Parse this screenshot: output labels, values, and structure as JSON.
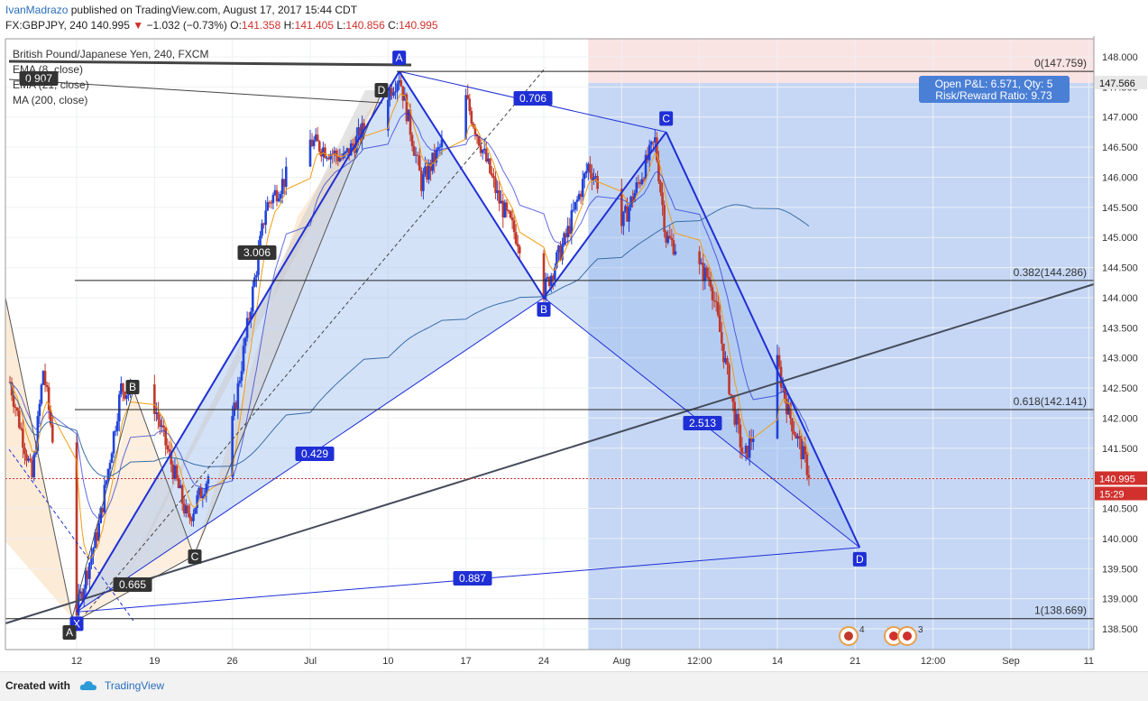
{
  "header": {
    "author": "IvanMadrazo",
    "published": "published on TradingView.com, August 17, 2017 15:44 CDT",
    "symbol": "FX:GBPJPY, 240",
    "last": "140.995",
    "change": "−1.032 (−0.73%)",
    "open_label": "O:",
    "open": "141.358",
    "high_label": "H:",
    "high": "141.405",
    "low_label": "L:",
    "low": "140.856",
    "close_label": "C:",
    "close": "140.995"
  },
  "legend": {
    "title": "British Pound/Japanese Yen, 240, FXCM",
    "ema8": "EMA (8, close)",
    "ema21": "EMA (21, close)",
    "ma200": "MA (200, close)"
  },
  "chart_data": {
    "type": "line",
    "title": "British Pound/Japanese Yen, 240, FXCM",
    "y_axis": {
      "ticks": [
        "148.000",
        "147.500",
        "147.000",
        "146.500",
        "146.000",
        "145.500",
        "145.000",
        "144.500",
        "144.000",
        "143.500",
        "143.000",
        "142.500",
        "142.000",
        "141.500",
        "141.000",
        "140.500",
        "140.000",
        "139.500",
        "139.000",
        "138.500"
      ],
      "range": [
        138.2,
        148.3
      ]
    },
    "x_axis": {
      "ticks": [
        "12",
        "19",
        "26",
        "Jul",
        "10",
        "17",
        "24",
        "Aug",
        "12:00",
        "14",
        "21",
        "12:00",
        "Sep",
        "11"
      ]
    },
    "price_path": [
      {
        "date": "2017-06-06",
        "close": 142.6
      },
      {
        "date": "2017-06-08",
        "close": 141.0
      },
      {
        "date": "2017-06-09",
        "close": 142.8
      },
      {
        "date": "2017-06-12",
        "close": 138.8
      },
      {
        "date": "2017-06-14",
        "close": 140.2
      },
      {
        "date": "2017-06-16",
        "close": 142.5
      },
      {
        "date": "2017-06-19",
        "close": 142.2
      },
      {
        "date": "2017-06-22",
        "close": 140.3
      },
      {
        "date": "2017-06-26",
        "close": 141.9
      },
      {
        "date": "2017-06-29",
        "close": 145.5
      },
      {
        "date": "2017-07-03",
        "close": 146.6
      },
      {
        "date": "2017-07-06",
        "close": 146.3
      },
      {
        "date": "2017-07-10",
        "close": 147.4
      },
      {
        "date": "2017-07-11",
        "close": 147.7
      },
      {
        "date": "2017-07-13",
        "close": 145.9
      },
      {
        "date": "2017-07-17",
        "close": 147.3
      },
      {
        "date": "2017-07-20",
        "close": 145.6
      },
      {
        "date": "2017-07-24",
        "close": 144.1
      },
      {
        "date": "2017-07-26",
        "close": 145.0
      },
      {
        "date": "2017-07-28",
        "close": 146.2
      },
      {
        "date": "2017-07-31",
        "close": 145.2
      },
      {
        "date": "2017-08-03",
        "close": 146.6
      },
      {
        "date": "2017-08-04",
        "close": 145.0
      },
      {
        "date": "2017-08-08",
        "close": 144.3
      },
      {
        "date": "2017-08-10",
        "close": 142.2
      },
      {
        "date": "2017-08-11",
        "close": 141.3
      },
      {
        "date": "2017-08-14",
        "close": 142.9
      },
      {
        "date": "2017-08-15",
        "close": 142.1
      },
      {
        "date": "2017-08-17",
        "close": 140.995
      }
    ],
    "harmonic_pattern": {
      "points": [
        {
          "label": "X",
          "price": 138.78
        },
        {
          "label": "A",
          "price": 147.759
        },
        {
          "label": "B",
          "price": 144.0
        },
        {
          "label": "C",
          "price": 146.75
        },
        {
          "label": "D",
          "price": 139.85
        }
      ],
      "ratios": [
        {
          "label": "0.706",
          "price": 147.2
        },
        {
          "label": "0.429",
          "price": 141.3
        },
        {
          "label": "2.513",
          "price": 141.9
        },
        {
          "label": "0.887",
          "price": 139.2
        }
      ]
    },
    "small_pattern": {
      "points": [
        {
          "label": "A",
          "price": 138.6
        },
        {
          "label": "B",
          "price": 142.5
        },
        {
          "label": "C",
          "price": 139.7
        },
        {
          "label": "D",
          "price": 147.4
        }
      ],
      "ratios": [
        {
          "label": "3.006",
          "price": 144.8
        },
        {
          "label": "0.665",
          "price": 139.7
        },
        {
          "label": "0.907",
          "price": 147.5
        }
      ]
    },
    "fib_levels": [
      {
        "label": "0(147.759)",
        "price": 147.759
      },
      {
        "label": "0.382(144.286)",
        "price": 144.286
      },
      {
        "label": "0.618(142.141)",
        "price": 142.141
      },
      {
        "label": "1(138.669)",
        "price": 138.669
      }
    ],
    "position": {
      "pnl_text": "Open P&L: 6.571, Qty: 5",
      "rr_text": "Risk/Reward Ratio: 9.73",
      "target_price": "147.566",
      "last_price": "140.995",
      "countdown": "15:29"
    },
    "event_badges": [
      "4",
      "3",
      "3"
    ]
  },
  "footer": {
    "created": "Created with",
    "brand": "TradingView"
  },
  "colors": {
    "pattern_blue": "#1f2fd6",
    "fill_blue": "#9fbff0",
    "position_blue": "#7fa6e8",
    "position_red": "#f5c0c0",
    "up_candle": "#2243d8",
    "down_candle": "#c0392b",
    "ema8": "#f39c12",
    "ema21": "#1f2fd6",
    "ma200": "#3b6fa8"
  }
}
